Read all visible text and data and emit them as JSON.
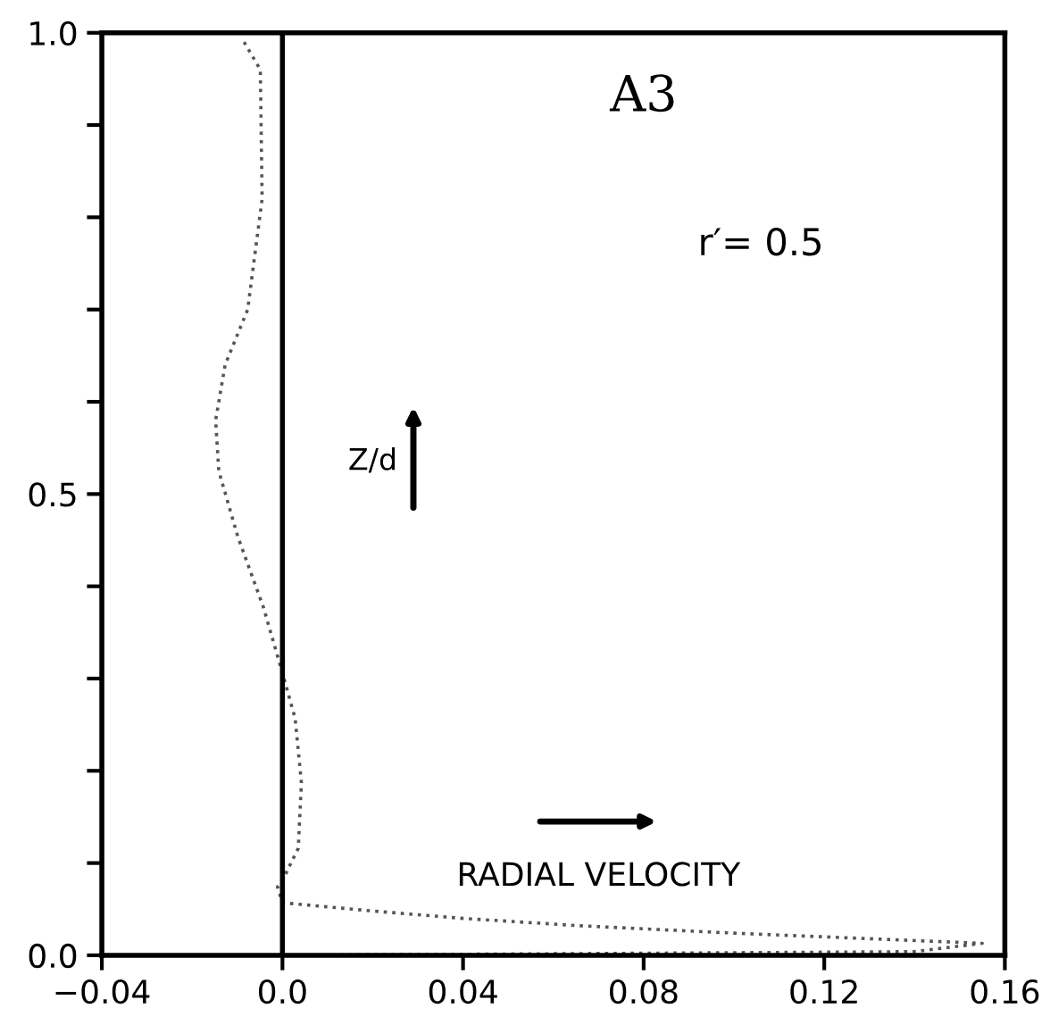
{
  "chart_data": {
    "type": "line",
    "title": "A3",
    "series": [
      {
        "color": "#555555",
        "line_style": "dotted",
        "x": [
          -0.0085,
          -0.0049,
          -0.0045,
          -0.0077,
          -0.0127,
          -0.0148,
          -0.0141,
          -0.0099,
          -0.0042,
          0.0,
          0.0028,
          0.0042,
          0.0035,
          0.0007,
          -0.0011,
          0.0,
          0.02,
          0.04,
          0.066,
          0.1,
          0.13,
          0.155,
          0.14,
          0.07,
          0.0
        ],
        "values": [
          0.99,
          0.96,
          0.82,
          0.7,
          0.64,
          0.58,
          0.525,
          0.454,
          0.377,
          0.306,
          0.257,
          0.187,
          0.116,
          0.088,
          0.074,
          0.057,
          0.048,
          0.04,
          0.032,
          0.024,
          0.018,
          0.013,
          0.004,
          0.002,
          0.0
        ]
      }
    ],
    "xlim": [
      -0.04,
      0.16
    ],
    "ylim": [
      0.0,
      1.0
    ],
    "xticks": [
      {
        "value": -0.04,
        "label": "−0.04"
      },
      {
        "value": 0.0,
        "label": "0.0"
      },
      0.04,
      0.08,
      0.12,
      0.16
    ],
    "yticks": [
      {
        "value": 0.0,
        "label": "0.0"
      },
      {
        "value": 0.1,
        "label": null
      },
      {
        "value": 0.2,
        "label": null
      },
      {
        "value": 0.3,
        "label": null
      },
      {
        "value": 0.4,
        "label": null
      },
      0.5,
      {
        "value": 0.6,
        "label": null
      },
      {
        "value": 0.7,
        "label": null
      },
      {
        "value": 0.8,
        "label": null
      },
      {
        "value": 0.9,
        "label": null
      },
      {
        "value": 1.0,
        "label": "1.0"
      }
    ],
    "ref_lines": [
      {
        "axis": "x",
        "value": 0.0,
        "color": "#000000",
        "line_style": "solid"
      }
    ],
    "annotations": [
      "r′= 0.5",
      "Z/d",
      "RADIAL VELOCITY"
    ],
    "grid": false,
    "legend": false
  }
}
